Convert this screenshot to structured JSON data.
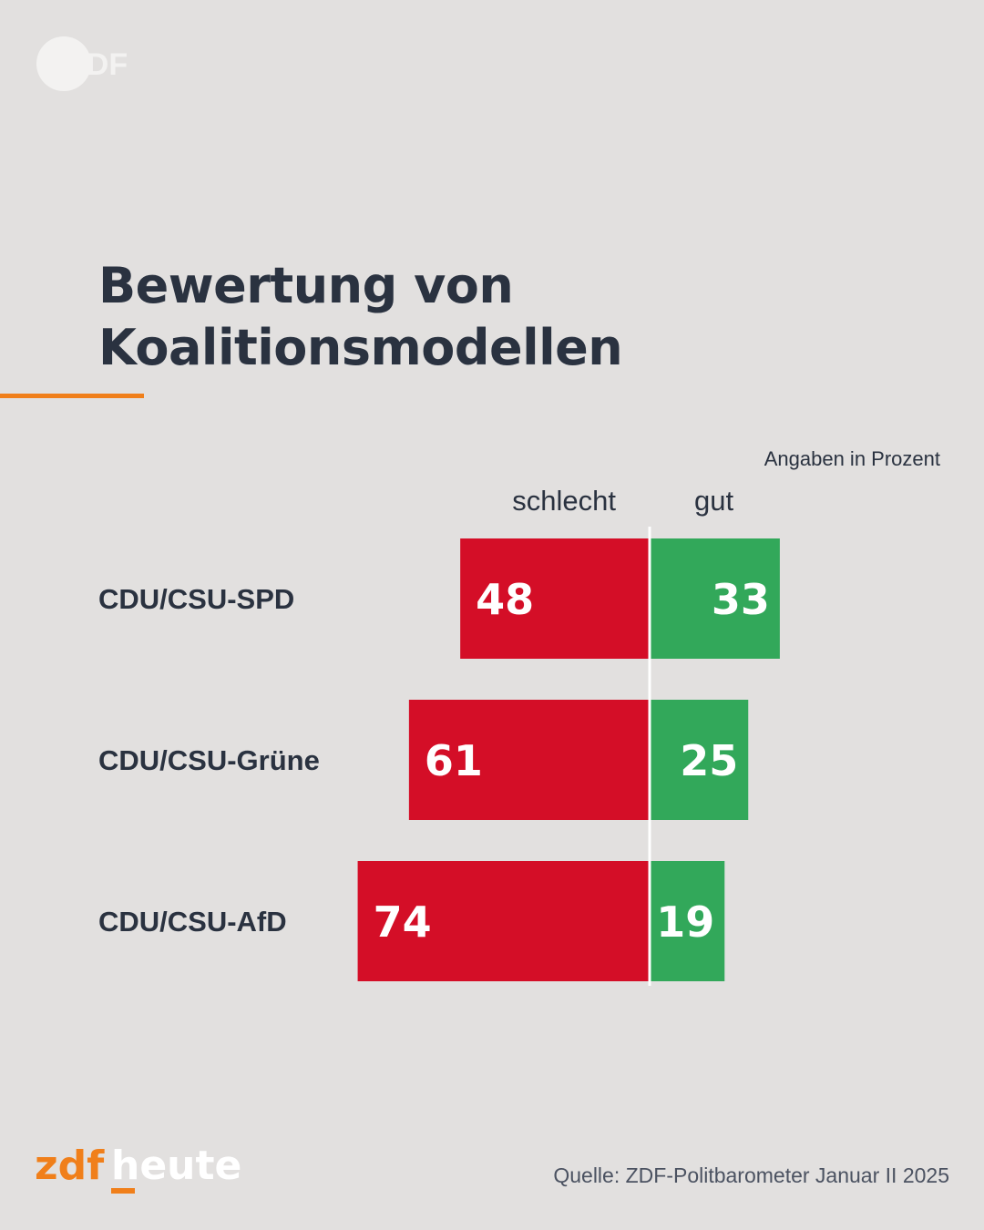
{
  "header": {
    "logo_text": "ZDF"
  },
  "title_lines": [
    "Bewertung von",
    "Koalitionsmodellen"
  ],
  "note": "Angaben in Prozent",
  "source": "Quelle: ZDF-Politbarometer Januar II 2025",
  "brand": {
    "zdf": "zdf",
    "heute": "heute"
  },
  "colors": {
    "negative": "#d40e27",
    "positive": "#32a85a",
    "accent": "#f07f1a",
    "text": "#2a3240",
    "background": "#e2e0df"
  },
  "chart_data": {
    "type": "bar",
    "orientation": "horizontal diverging",
    "categories": [
      "CDU/CSU-SPD",
      "CDU/CSU-Grüne",
      "CDU/CSU-AfD"
    ],
    "series": [
      {
        "name": "schlecht",
        "values": [
          48,
          61,
          74
        ],
        "direction": "left",
        "color": "#d40e27"
      },
      {
        "name": "gut",
        "values": [
          33,
          25,
          19
        ],
        "direction": "right",
        "color": "#32a85a"
      }
    ],
    "data_labels": true,
    "grid": false,
    "legend": "column headers above bars"
  }
}
